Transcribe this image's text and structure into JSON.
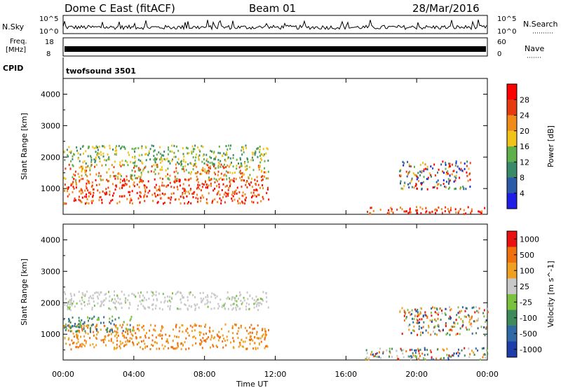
{
  "header": {
    "radar": "Dome C East (fitACF)",
    "beam": "Beam 01",
    "date": "28/Mar/2016"
  },
  "strips": {
    "nsky_label": "N.Sky",
    "nsky_ticks": [
      "10^5",
      "10^0"
    ],
    "nsearch_label": "N.Search",
    "nsearch_ticks": [
      "10^5",
      "10^0"
    ],
    "freq_label_line1": "Freq.",
    "freq_label_line2": "[MHz]",
    "freq_ticks": [
      "18",
      "8"
    ],
    "nave_label": "Nave",
    "nave_ticks": [
      "60",
      "0"
    ],
    "cpid_label": "CPID",
    "cpid_text": "twofsound 3501"
  },
  "chart_data": [
    {
      "type": "heatmap",
      "name": "power",
      "ylabel": "Slant Range [km]",
      "ylim": [
        180,
        4500
      ],
      "yticks": [
        1000,
        2000,
        3000,
        4000
      ],
      "xlim": [
        0,
        24
      ],
      "colorbar": {
        "label": "Power [dB]",
        "ticks": [
          4,
          8,
          12,
          16,
          20,
          24,
          28
        ],
        "range": [
          0,
          32
        ],
        "colors": [
          "#1e1ee6",
          "#2a5aa8",
          "#3a8a6a",
          "#5fb04a",
          "#f0c21a",
          "#f08a1a",
          "#e83a10",
          "#ff0000"
        ]
      },
      "regions": [
        {
          "t": [
            0.0,
            11.6
          ],
          "r": [
            550,
            1350
          ],
          "level": "high"
        },
        {
          "t": [
            0.0,
            11.6
          ],
          "r": [
            1300,
            1800
          ],
          "level": "mid"
        },
        {
          "t": [
            0.0,
            11.6
          ],
          "r": [
            1800,
            2400
          ],
          "level": "low"
        },
        {
          "t": [
            17.0,
            24.0
          ],
          "r": [
            220,
            450
          ],
          "level": "high"
        },
        {
          "t": [
            19.0,
            23.0
          ],
          "r": [
            1000,
            1900
          ],
          "level": "mixed"
        }
      ]
    },
    {
      "type": "heatmap",
      "name": "velocity",
      "ylabel": "Slant Range [km]",
      "ylim": [
        180,
        4500
      ],
      "yticks": [
        1000,
        2000,
        3000,
        4000
      ],
      "xlim": [
        0,
        24
      ],
      "colorbar": {
        "label": "Velocity [m s^-1]",
        "ticks": [
          "1000",
          "500",
          "100",
          "25",
          "-25",
          "-100",
          "-500",
          "-1000"
        ],
        "colors": [
          "#1e3caa",
          "#2f6aa5",
          "#3f8a5a",
          "#7ac23e",
          "#c8c8c8",
          "#f0a020",
          "#f07010",
          "#e81010"
        ]
      },
      "regions": [
        {
          "t": [
            0.0,
            11.6
          ],
          "r": [
            1800,
            2400
          ],
          "level": "near-zero"
        },
        {
          "t": [
            0.0,
            11.6
          ],
          "r": [
            550,
            1350
          ],
          "level": "negative"
        },
        {
          "t": [
            0.0,
            4.0
          ],
          "r": [
            1100,
            1600
          ],
          "level": "positive"
        },
        {
          "t": [
            17.0,
            24.0
          ],
          "r": [
            220,
            600
          ],
          "level": "mixed"
        },
        {
          "t": [
            19.0,
            24.0
          ],
          "r": [
            1000,
            1900
          ],
          "level": "mixed"
        }
      ]
    }
  ],
  "xaxis": {
    "ticks": [
      "00:00",
      "04:00",
      "08:00",
      "12:00",
      "16:00",
      "20:00",
      "00:00"
    ],
    "label": "Time UT"
  }
}
